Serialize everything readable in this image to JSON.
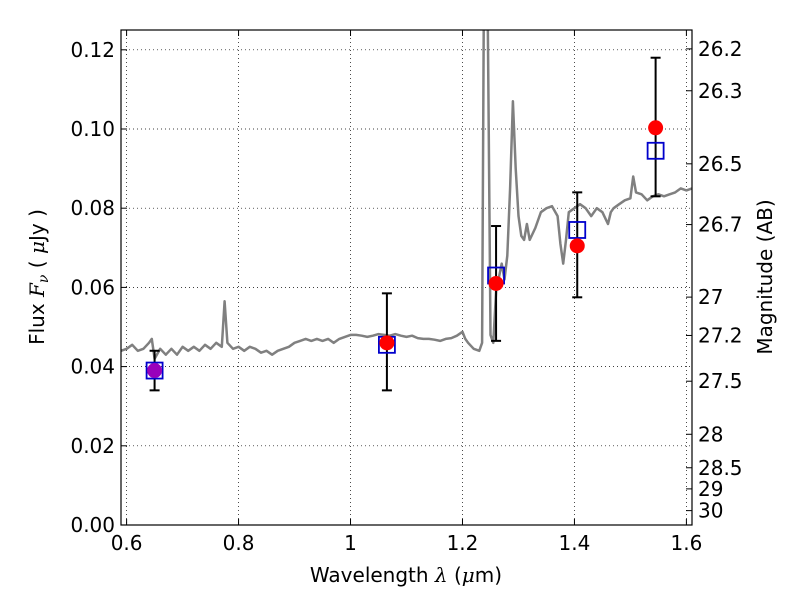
{
  "chart_data": {
    "type": "line",
    "title": "",
    "xlabel_parts": [
      "Wavelength  ",
      "λ",
      " (",
      "μ",
      "m)"
    ],
    "ylabel_parts": [
      "Flux  ",
      "F",
      "ν",
      "  (  ",
      "μ",
      "Jy )"
    ],
    "y2label": "Magnitude (AB)",
    "xlim": [
      0.59,
      1.61
    ],
    "ylim": [
      0.0,
      0.125
    ],
    "x_ticks": [
      {
        "v": 0.6,
        "label": "0.6"
      },
      {
        "v": 0.8,
        "label": "0.8"
      },
      {
        "v": 1.0,
        "label": "1"
      },
      {
        "v": 1.2,
        "label": "1.2"
      },
      {
        "v": 1.4,
        "label": "1.4"
      },
      {
        "v": 1.6,
        "label": "1.6"
      }
    ],
    "y_ticks": [
      {
        "v": 0.0,
        "label": "0.00"
      },
      {
        "v": 0.02,
        "label": "0.02"
      },
      {
        "v": 0.04,
        "label": "0.04"
      },
      {
        "v": 0.06,
        "label": "0.06"
      },
      {
        "v": 0.08,
        "label": "0.08"
      },
      {
        "v": 0.1,
        "label": "0.10"
      },
      {
        "v": 0.12,
        "label": "0.12"
      }
    ],
    "mag_ticks": [
      {
        "v": 26.2,
        "label": "26.2"
      },
      {
        "v": 26.3,
        "label": "26.3"
      },
      {
        "v": 26.5,
        "label": "26.5"
      },
      {
        "v": 26.7,
        "label": "26.7"
      },
      {
        "v": 27.0,
        "label": "27"
      },
      {
        "v": 27.2,
        "label": "27.2"
      },
      {
        "v": 27.5,
        "label": "27.5"
      },
      {
        "v": 28.0,
        "label": "28"
      },
      {
        "v": 28.5,
        "label": "28.5"
      },
      {
        "v": 29.0,
        "label": "29"
      },
      {
        "v": 30.0,
        "label": "30"
      }
    ],
    "grid": true,
    "series": [
      {
        "kind": "spectrum",
        "color": "#808080",
        "points": [
          [
            0.59,
            0.044
          ],
          [
            0.6,
            0.0445
          ],
          [
            0.61,
            0.0455
          ],
          [
            0.62,
            0.044
          ],
          [
            0.63,
            0.0445
          ],
          [
            0.64,
            0.046
          ],
          [
            0.645,
            0.047
          ],
          [
            0.65,
            0.042
          ],
          [
            0.66,
            0.0445
          ],
          [
            0.67,
            0.043
          ],
          [
            0.68,
            0.0445
          ],
          [
            0.69,
            0.043
          ],
          [
            0.7,
            0.045
          ],
          [
            0.71,
            0.044
          ],
          [
            0.72,
            0.045
          ],
          [
            0.73,
            0.044
          ],
          [
            0.74,
            0.0455
          ],
          [
            0.75,
            0.0445
          ],
          [
            0.76,
            0.046
          ],
          [
            0.77,
            0.045
          ],
          [
            0.775,
            0.0565
          ],
          [
            0.78,
            0.046
          ],
          [
            0.79,
            0.0445
          ],
          [
            0.8,
            0.045
          ],
          [
            0.81,
            0.044
          ],
          [
            0.82,
            0.045
          ],
          [
            0.83,
            0.0445
          ],
          [
            0.84,
            0.0435
          ],
          [
            0.85,
            0.044
          ],
          [
            0.86,
            0.043
          ],
          [
            0.87,
            0.044
          ],
          [
            0.88,
            0.0445
          ],
          [
            0.89,
            0.045
          ],
          [
            0.9,
            0.046
          ],
          [
            0.91,
            0.0465
          ],
          [
            0.92,
            0.047
          ],
          [
            0.93,
            0.0465
          ],
          [
            0.94,
            0.047
          ],
          [
            0.95,
            0.0465
          ],
          [
            0.96,
            0.047
          ],
          [
            0.97,
            0.046
          ],
          [
            0.98,
            0.047
          ],
          [
            0.99,
            0.0475
          ],
          [
            1.0,
            0.048
          ],
          [
            1.01,
            0.048
          ],
          [
            1.02,
            0.0478
          ],
          [
            1.03,
            0.0475
          ],
          [
            1.04,
            0.0478
          ],
          [
            1.05,
            0.0482
          ],
          [
            1.06,
            0.048
          ],
          [
            1.07,
            0.0478
          ],
          [
            1.08,
            0.0482
          ],
          [
            1.09,
            0.0478
          ],
          [
            1.1,
            0.0475
          ],
          [
            1.11,
            0.0478
          ],
          [
            1.12,
            0.0472
          ],
          [
            1.13,
            0.047
          ],
          [
            1.14,
            0.047
          ],
          [
            1.15,
            0.0468
          ],
          [
            1.16,
            0.0465
          ],
          [
            1.17,
            0.047
          ],
          [
            1.18,
            0.0472
          ],
          [
            1.19,
            0.0478
          ],
          [
            1.2,
            0.0488
          ],
          [
            1.205,
            0.047
          ],
          [
            1.21,
            0.046
          ],
          [
            1.22,
            0.0445
          ],
          [
            1.23,
            0.044
          ],
          [
            1.235,
            0.046
          ],
          [
            1.238,
            0.13
          ],
          [
            1.245,
            0.13
          ],
          [
            1.25,
            0.048
          ],
          [
            1.255,
            0.046
          ],
          [
            1.26,
            0.059
          ],
          [
            1.27,
            0.066
          ],
          [
            1.275,
            0.062
          ],
          [
            1.28,
            0.068
          ],
          [
            1.285,
            0.085
          ],
          [
            1.29,
            0.107
          ],
          [
            1.295,
            0.09
          ],
          [
            1.3,
            0.078
          ],
          [
            1.305,
            0.073
          ],
          [
            1.31,
            0.072
          ],
          [
            1.315,
            0.076
          ],
          [
            1.32,
            0.072
          ],
          [
            1.33,
            0.075
          ],
          [
            1.34,
            0.079
          ],
          [
            1.35,
            0.08
          ],
          [
            1.36,
            0.0805
          ],
          [
            1.37,
            0.078
          ],
          [
            1.375,
            0.071
          ],
          [
            1.38,
            0.066
          ],
          [
            1.385,
            0.072
          ],
          [
            1.39,
            0.079
          ],
          [
            1.4,
            0.08
          ],
          [
            1.41,
            0.081
          ],
          [
            1.42,
            0.08
          ],
          [
            1.43,
            0.078
          ],
          [
            1.44,
            0.08
          ],
          [
            1.45,
            0.079
          ],
          [
            1.46,
            0.076
          ],
          [
            1.465,
            0.079
          ],
          [
            1.47,
            0.08
          ],
          [
            1.48,
            0.081
          ],
          [
            1.49,
            0.082
          ],
          [
            1.5,
            0.0825
          ],
          [
            1.505,
            0.088
          ],
          [
            1.51,
            0.084
          ],
          [
            1.52,
            0.0835
          ],
          [
            1.53,
            0.082
          ],
          [
            1.54,
            0.083
          ],
          [
            1.55,
            0.0835
          ],
          [
            1.56,
            0.083
          ],
          [
            1.57,
            0.0835
          ],
          [
            1.58,
            0.084
          ],
          [
            1.59,
            0.085
          ],
          [
            1.6,
            0.0845
          ],
          [
            1.61,
            0.085
          ]
        ]
      },
      {
        "kind": "model-squares",
        "color": "#0000cc",
        "points": [
          [
            0.65,
            0.039
          ],
          [
            1.065,
            0.0455
          ],
          [
            1.26,
            0.063
          ],
          [
            1.405,
            0.0745
          ],
          [
            1.545,
            0.0945
          ]
        ]
      },
      {
        "kind": "observed-points",
        "color": "#ff0000",
        "points": [
          {
            "x": 0.65,
            "y": 0.039,
            "lo": 0.034,
            "hi": 0.044,
            "color": "#9900bb"
          },
          {
            "x": 1.065,
            "y": 0.046,
            "lo": 0.034,
            "hi": 0.0585
          },
          {
            "x": 1.26,
            "y": 0.061,
            "lo": 0.0465,
            "hi": 0.0755
          },
          {
            "x": 1.405,
            "y": 0.0705,
            "lo": 0.0575,
            "hi": 0.084
          },
          {
            "x": 1.545,
            "y": 0.1003,
            "lo": 0.083,
            "hi": 0.118
          }
        ]
      }
    ]
  }
}
